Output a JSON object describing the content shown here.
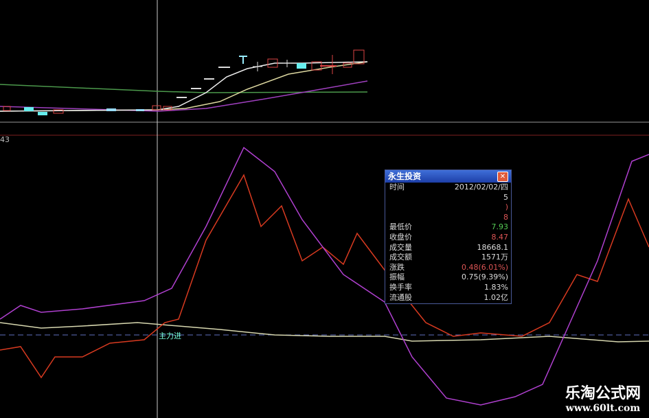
{
  "chart_panel": {
    "indicator_value": "43",
    "signal_label": "主力进"
  },
  "popup": {
    "title": "永生投资",
    "close_icon": "close-icon",
    "rows": [
      {
        "label": "时间",
        "value": "2012/02/02/四",
        "color": "#dddddd"
      },
      {
        "label": "",
        "value": "5",
        "color": "#dddddd"
      },
      {
        "label": "",
        "value": ")",
        "color": "#dd5555"
      },
      {
        "label": "",
        "value": "8",
        "color": "#dd5555"
      },
      {
        "label": "最低价",
        "value": "7.93",
        "color": "#55cc55"
      },
      {
        "label": "收盘价",
        "value": "8.47",
        "color": "#dd5555"
      },
      {
        "label": "成交量",
        "value": "18668.1",
        "color": "#dddddd"
      },
      {
        "label": "成交额",
        "value": "1571万",
        "color": "#dddddd"
      },
      {
        "label": "涨跌",
        "value": "0.48(6.01%)",
        "color": "#dd5555"
      },
      {
        "label": "振幅",
        "value": "0.75(9.39%)",
        "color": "#dddddd"
      },
      {
        "label": "换手率",
        "value": "1.83%",
        "color": "#dddddd"
      },
      {
        "label": "流通股",
        "value": "1.02亿",
        "color": "#dddddd"
      }
    ]
  },
  "watermark": {
    "name": "乐淘公式网",
    "url": "www.60lt.com"
  }
}
